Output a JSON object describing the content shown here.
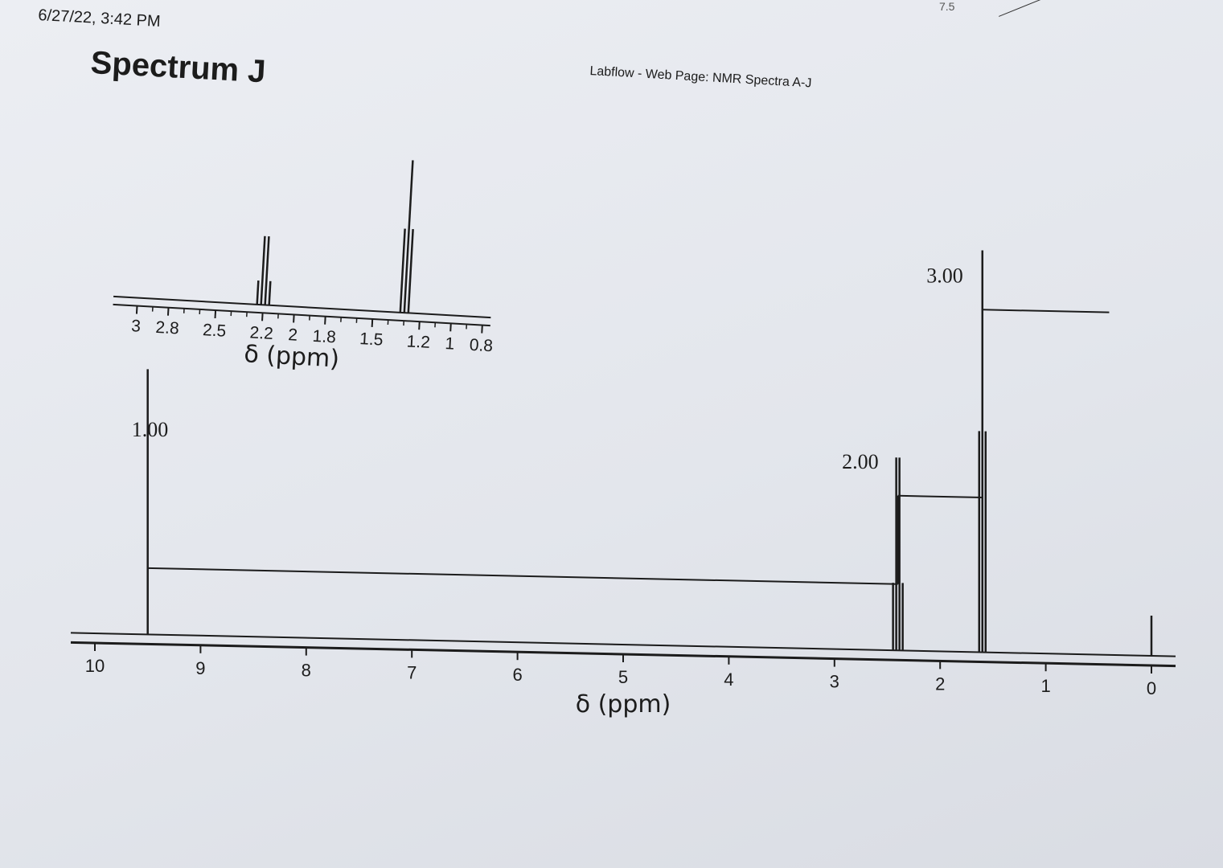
{
  "header": {
    "timestamp": "6/27/22, 3:42 PM",
    "title": "Spectrum J",
    "source": "Labflow - Web Page: NMR Spectra A-J",
    "corner_note": "7.5"
  },
  "chart_data": [
    {
      "type": "line",
      "title": "Spectrum J",
      "xlabel": "δ (ppm)",
      "ylabel": "",
      "xlim": [
        10,
        0
      ],
      "x_reversed": true,
      "x_ticks": [
        10,
        9,
        8,
        7,
        6,
        5,
        4,
        3,
        2,
        1,
        0
      ],
      "peaks": [
        {
          "shift": 9.5,
          "height": 0.66,
          "multiplicity": "singlet"
        },
        {
          "shift": 2.4,
          "height": 0.48,
          "multiplicity": "quartet"
        },
        {
          "shift": 1.6,
          "height": 1.0,
          "multiplicity": "triplet"
        },
        {
          "shift": 0.0,
          "height": 0.1,
          "multiplicity": "singlet"
        }
      ],
      "integrations": [
        {
          "label": "1.00",
          "start": 9.5,
          "end": 2.4,
          "level": 0.3
        },
        {
          "label": "2.00",
          "start": 2.4,
          "end": 1.6,
          "level": 0.7
        },
        {
          "label": "3.00",
          "start": 1.6,
          "end": 0.4,
          "level": 1.55
        }
      ],
      "grid": false
    },
    {
      "type": "line",
      "title": "",
      "xlabel": "δ (ppm)",
      "ylabel": "",
      "xlim": [
        3,
        0.8
      ],
      "x_reversed": true,
      "x_tick_labels": [
        "3",
        "2.8",
        "2.5",
        "2.2",
        "2",
        "1.8",
        "1.5",
        "1.2",
        "1",
        "0.8"
      ],
      "x_tick_values": [
        3,
        2.8,
        2.5,
        2.2,
        2,
        1.8,
        1.5,
        1.2,
        1,
        0.8
      ],
      "peaks": [
        {
          "shift": 2.2,
          "height": 0.45,
          "multiplicity": "quartet"
        },
        {
          "shift": 1.3,
          "height": 1.0,
          "multiplicity": "triplet"
        }
      ],
      "grid": false
    }
  ]
}
